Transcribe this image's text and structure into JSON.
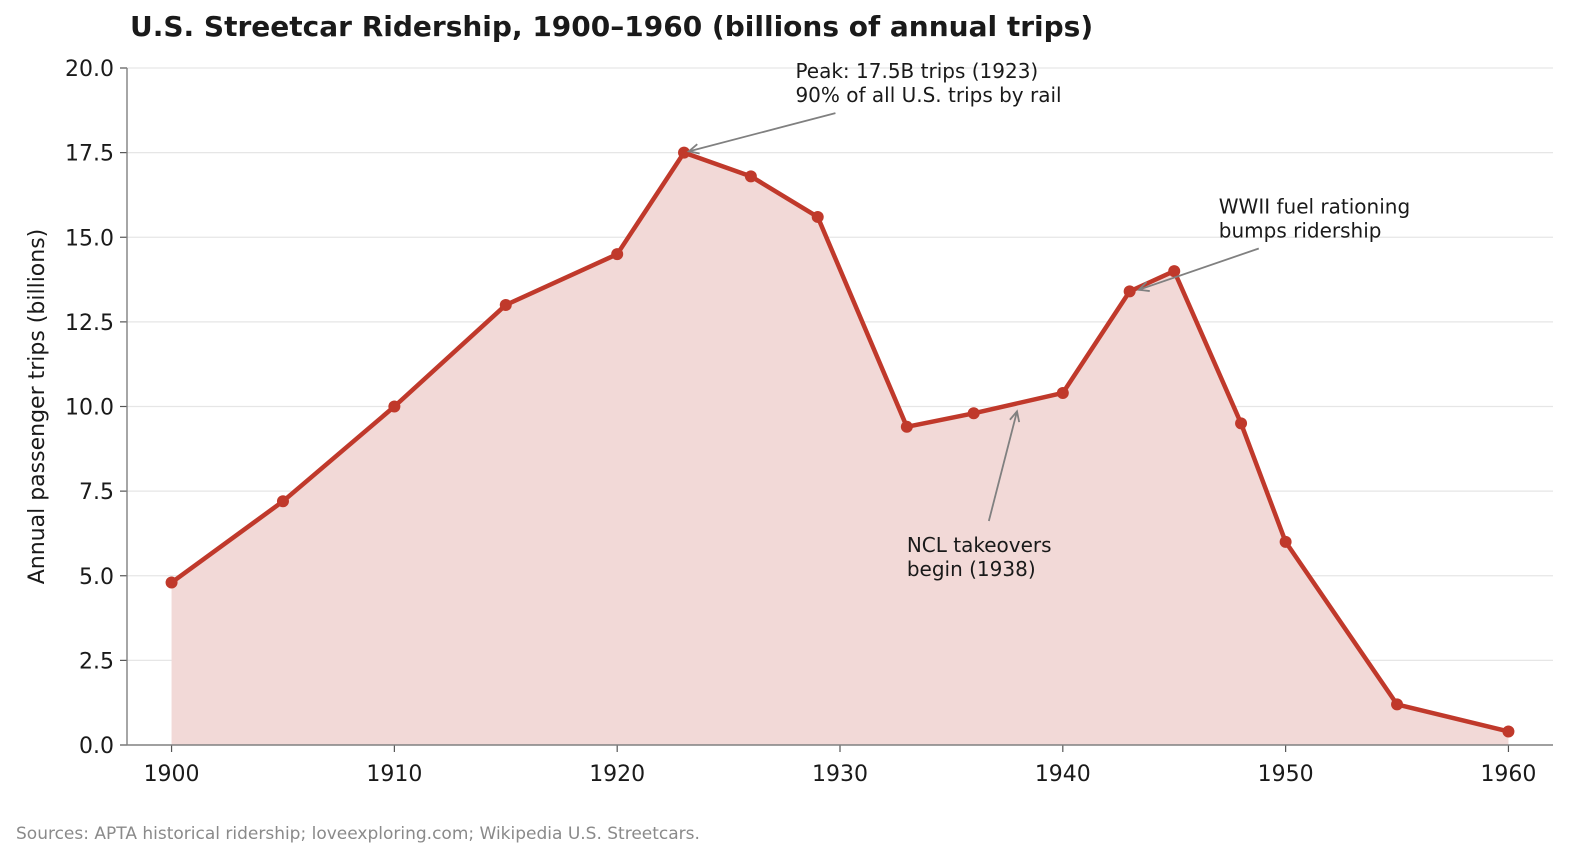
{
  "chart_data": {
    "type": "area",
    "title": "U.S. Streetcar Ridership, 1900–1960 (billions of annual trips)",
    "xlabel": "",
    "ylabel": "Annual passenger trips (billions)",
    "xlim": [
      1898,
      1962
    ],
    "ylim": [
      0,
      20
    ],
    "x_ticks": [
      "1900",
      "1910",
      "1920",
      "1930",
      "1940",
      "1950",
      "1960"
    ],
    "y_ticks": [
      "0.0",
      "2.5",
      "5.0",
      "7.5",
      "10.0",
      "12.5",
      "15.0",
      "17.5",
      "20.0"
    ],
    "grid": "horizontal",
    "legend": "none",
    "series": [
      {
        "x": [
          1900,
          1905,
          1910,
          1915,
          1920,
          1923,
          1926,
          1929,
          1933,
          1936,
          1940,
          1943,
          1945,
          1948,
          1950,
          1955,
          1960
        ],
        "values": [
          4.8,
          7.2,
          10.0,
          13.0,
          14.5,
          17.5,
          16.8,
          15.6,
          9.4,
          9.8,
          10.4,
          13.4,
          14.0,
          9.5,
          6.0,
          1.2,
          0.4
        ],
        "color": "#c0392b",
        "fill_color": "#f2d9d7"
      }
    ],
    "annotations": [
      {
        "lines": [
          "Peak: 17.5B trips (1923)",
          "90% of all U.S. trips by rail"
        ],
        "point": [
          1923,
          17.5
        ],
        "text_at": [
          1928,
          19.2
        ]
      },
      {
        "lines": [
          "WWII fuel rationing",
          "bumps ridership"
        ],
        "point": [
          1943.2,
          13.4
        ],
        "text_at": [
          1947,
          15.2
        ]
      },
      {
        "lines": [
          "NCL takeovers",
          "begin (1938)"
        ],
        "point": [
          1938,
          10.0
        ],
        "text_at": [
          1933,
          5.2
        ]
      }
    ]
  },
  "source": "Sources: APTA historical ridership; loveexploring.com; Wikipedia U.S. Streetcars."
}
